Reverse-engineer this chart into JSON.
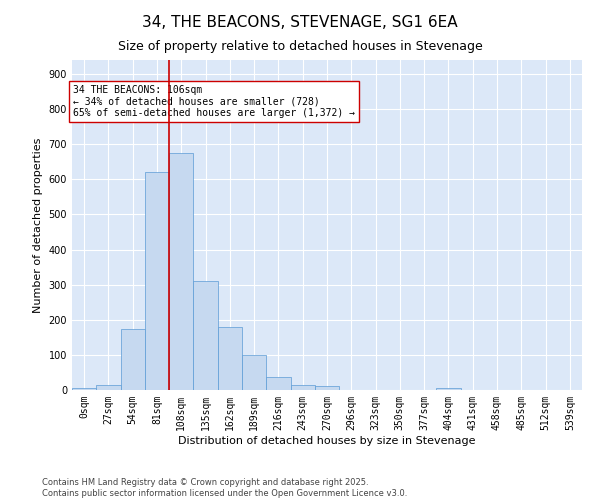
{
  "title1": "34, THE BEACONS, STEVENAGE, SG1 6EA",
  "title2": "Size of property relative to detached houses in Stevenage",
  "xlabel": "Distribution of detached houses by size in Stevenage",
  "ylabel": "Number of detached properties",
  "categories": [
    "0sqm",
    "27sqm",
    "54sqm",
    "81sqm",
    "108sqm",
    "135sqm",
    "162sqm",
    "189sqm",
    "216sqm",
    "243sqm",
    "270sqm",
    "296sqm",
    "323sqm",
    "350sqm",
    "377sqm",
    "404sqm",
    "431sqm",
    "458sqm",
    "485sqm",
    "512sqm",
    "539sqm"
  ],
  "bar_heights": [
    7,
    13,
    175,
    620,
    675,
    310,
    180,
    100,
    38,
    15,
    11,
    0,
    0,
    0,
    0,
    5,
    0,
    0,
    0,
    0,
    0
  ],
  "bar_color": "#c6d9f0",
  "bar_edge_color": "#5b9bd5",
  "bar_width": 1.0,
  "vline_x": 4.0,
  "vline_color": "#cc0000",
  "annotation_text": "34 THE BEACONS: 106sqm\n← 34% of detached houses are smaller (728)\n65% of semi-detached houses are larger (1,372) →",
  "annotation_box_color": "#ffffff",
  "annotation_box_edge": "#cc0000",
  "ylim": [
    0,
    940
  ],
  "yticks": [
    0,
    100,
    200,
    300,
    400,
    500,
    600,
    700,
    800,
    900
  ],
  "bg_color": "#ffffff",
  "plot_bg_color": "#dce8f8",
  "grid_color": "#ffffff",
  "footer_text": "Contains HM Land Registry data © Crown copyright and database right 2025.\nContains public sector information licensed under the Open Government Licence v3.0.",
  "title1_fontsize": 11,
  "title2_fontsize": 9,
  "xlabel_fontsize": 8,
  "ylabel_fontsize": 8,
  "tick_fontsize": 7,
  "annotation_fontsize": 7,
  "footer_fontsize": 6
}
